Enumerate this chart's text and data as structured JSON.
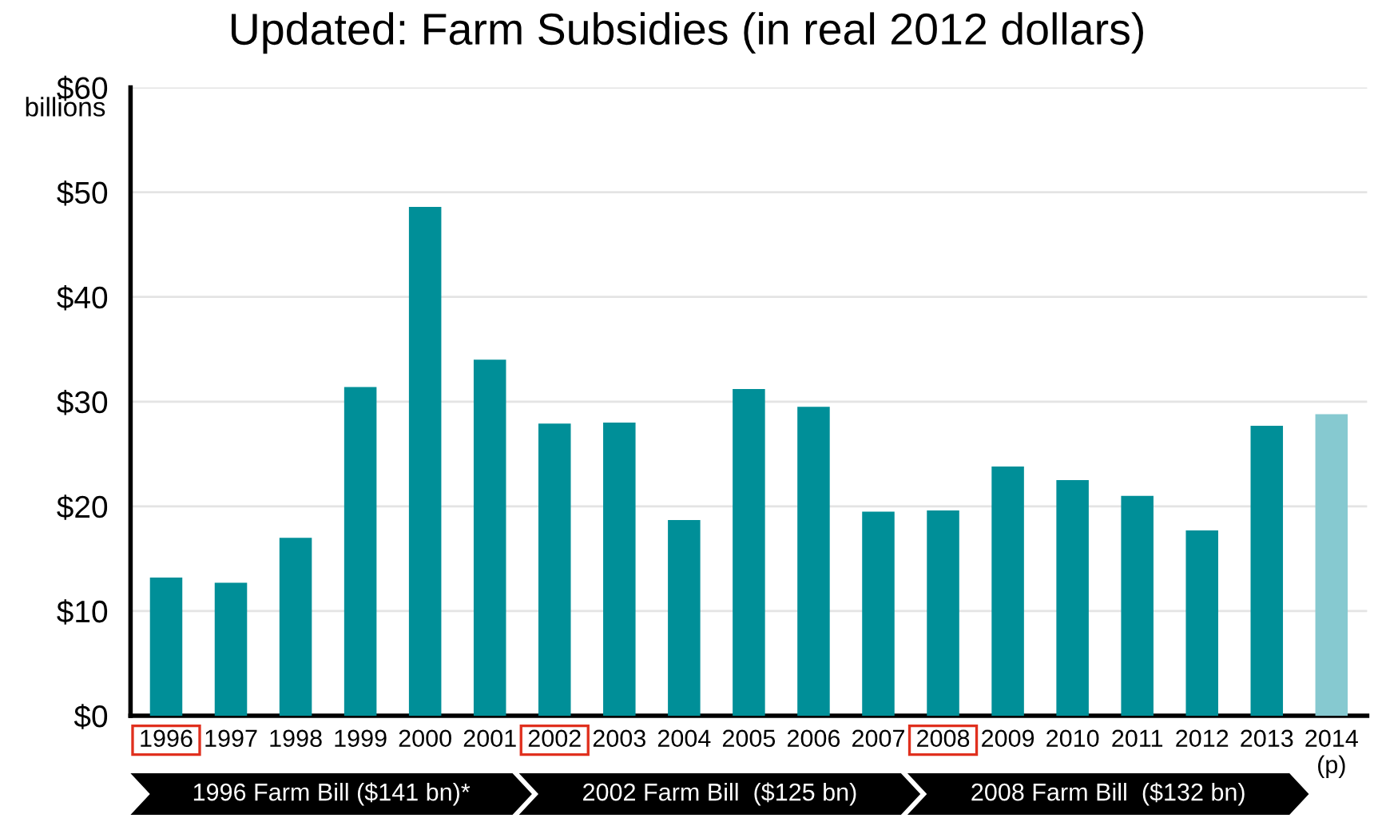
{
  "chart_data": {
    "type": "bar",
    "title": "Updated: Farm Subsidies (in real 2012 dollars)",
    "ylabel": "billions",
    "categories": [
      "1996",
      "1997",
      "1998",
      "1999",
      "2000",
      "2001",
      "2002",
      "2003",
      "2004",
      "2005",
      "2006",
      "2007",
      "2008",
      "2009",
      "2010",
      "2011",
      "2012",
      "2013",
      "2014\n(p)"
    ],
    "values": [
      13.2,
      12.7,
      17.0,
      31.4,
      48.6,
      34.0,
      27.9,
      28.0,
      18.7,
      31.2,
      29.5,
      19.5,
      19.6,
      23.8,
      22.5,
      21.0,
      17.7,
      27.7,
      28.8
    ],
    "colors": [
      "#008f98",
      "#008f98",
      "#008f98",
      "#008f98",
      "#008f98",
      "#008f98",
      "#008f98",
      "#008f98",
      "#008f98",
      "#008f98",
      "#008f98",
      "#008f98",
      "#008f98",
      "#008f98",
      "#008f98",
      "#008f98",
      "#008f98",
      "#008f98",
      "#86c9d0"
    ],
    "ylim": [
      0,
      60
    ],
    "yticks": [
      {
        "value": 0,
        "label": "$0"
      },
      {
        "value": 10,
        "label": "$10"
      },
      {
        "value": 20,
        "label": "$20"
      },
      {
        "value": 30,
        "label": "$30"
      },
      {
        "value": 40,
        "label": "$40"
      },
      {
        "value": 50,
        "label": "$50"
      },
      {
        "value": 60,
        "label": "$60"
      }
    ],
    "grid": "y",
    "annotations": [
      "1996 Farm Bill ($141 bn)*",
      "2002 Farm Bill  ($125 bn)",
      "2008 Farm Bill  ($132 bn)"
    ]
  }
}
